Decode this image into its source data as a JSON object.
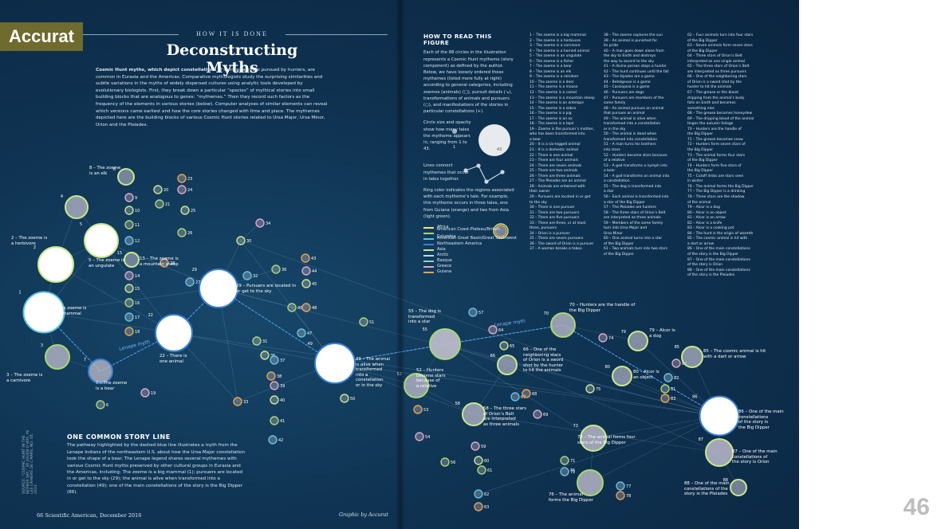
{
  "brand": {
    "label": "Accurat"
  },
  "slide": {
    "page_number": "46"
  },
  "header": {
    "kicker": "HOW IT IS DONE",
    "title": "Deconstructing Myths"
  },
  "intro": {
    "lead": "Cosmic Hunt myths, which depict constellations",
    "body": " of stars as animals pursued by hunters, are common in Eurasia and the Americas. Comparative mythologists study the surprising similarities and subtle variations in the myths of widely dispersed cultures using analytic tools developed by evolutionary biologists. First, they break down a particular “species” of mythical stories into small building blocks that are analogous to genes: “mythemes.” Then they record such factors as the frequency of the elements in various stories (below). Computer analyses of similar elements can reveal which versions came earliest and how the core stories changed with time and place. The mythemes depicted here are the building blocks of various Cosmic Hunt stories related to Ursa Major, Ursa Minor, Orion and the Pleiades."
  },
  "story": {
    "heading": "ONE COMMON STORY LINE",
    "text": "The pathway highlighted by the dashed blue line illustrates a myth from the Lenape Indians of the northeastern U.S. about how the Ursa Major constellation took the shape of a bear. The Lenape legend shares several mythemes with various Cosmic Hunt myths preserved by other cultural groups in Eurasia and the Americas, including: The zoeme is a big mammal (1); pursuers are located in or get to the sky (29); the animal is alive when transformed into a constellation (49); one of the main constellations of the story is the Big Dipper (86)."
  },
  "source_note": "SOURCE: “COSMIC HUNT IN THE BERBER SKY,” BY JULIEN D’HUY, IN LES CAHIERS DE L’AARS, NO. 16; 2013",
  "footer": {
    "left": "66  Scientific American, December 2016",
    "credit": "Graphic by Accurat"
  },
  "how_to_read": {
    "heading": "HOW TO READ THIS FIGURE",
    "p1": "Each of the 88 circles in the illustration represents a Cosmic Hunt mytheme (story component) as defined by the author. Below, we have loosely ordered those mythemes (listed more fully at right) according to general categories, including zoemes (animals) (□), pursuit details (↘), transformations of animals and pursuers (○), and manifestations of the stories in particular constellations (+).",
    "p2": "Circle size and opacity show how many tales the mytheme appears in, ranging from 1 to 43.",
    "p3": "Lines connect mythemes that occur in tales together.",
    "p4": "Ring color indicates the regions associated with each mytheme’s tale. For example, this mytheme occurs in three tales, one from Guiana (orange) and two from Asia (light green).",
    "size_min": "1",
    "size_max": "43",
    "regions": [
      {
        "name": "Africa",
        "color": "#f2e77a"
      },
      {
        "name": "American Coast-Plateau/British Columbia",
        "color": "#a8d86d"
      },
      {
        "name": "American Great Basin/Great Southwest",
        "color": "#5fc3e4"
      },
      {
        "name": "Northeastern America",
        "color": "#3b7fd1"
      },
      {
        "name": "Asia",
        "color": "#c7e88a"
      },
      {
        "name": "Arctic",
        "color": "#b7d9ef"
      },
      {
        "name": "Basque",
        "color": "#9ad0b9"
      },
      {
        "name": "Greece",
        "color": "#e6a3c8"
      },
      {
        "name": "Guiana",
        "color": "#f0a04b"
      }
    ]
  },
  "mytheme_columns": [
    [
      "1 – The zoeme is a big mammal",
      "2 – The zoeme is a herbivore",
      "3 – The zoeme is a carnivore",
      "4 – The zoeme is a horned animal",
      "5 – The zoeme is an ungulate",
      "6 – The zoeme is a fisher",
      "7 – The zoeme is a bear",
      "8 – The zoeme is an elk",
      "9 – The zoeme is a reindeer",
      "10 – The zoeme is a deer",
      "11 – The zoeme is a moose",
      "12 – The zoeme is a camel",
      "13 – The zoeme is a mountain sheep",
      "14 – The zoeme is an antelope",
      "15 – The zoeme is a zebra",
      "16 – The zoeme is a pig",
      "17 – The zoeme is an ox",
      "18 – The zoeme is a tapir",
      "19 – Zoeme is the pursuer’s mother,",
      "who has been transformed into",
      "a bear",
      "20 – It is a six-legged animal",
      "21 – It is a domestic animal",
      "22 – There is one animal",
      "23 – There are four animals",
      "24 – There are seven animals",
      "25 – There are two animals",
      "26 – There are three animals",
      "27 – The Pleiades are an animal",
      "28 – Animals are entwined with",
      "their owner",
      "29 – Pursuers are located in or get",
      "to the sky",
      "30 – There is one pursuer",
      "31 – There are two pursuers",
      "32 – There are five pursuers",
      "33 – There are three, or at least",
      "three, pursuers",
      "34 – Orion is a pursuer",
      "35 – There are seven pursuers",
      "36 – The sword of Orion is a pursuer",
      "37 – A woman breaks a taboo"
    ],
    [
      "38 – The zoeme captures the sun",
      "39 – An animal is punished for",
      "its pride",
      "40 – A man goes down alone from",
      "the sky to Earth and destroys",
      "the way to ascent to the sky",
      "41 – A divine person stops a hunter",
      "42 – The hunt continues until the fall",
      "43 – The Hyades are a game",
      "44 – Betelgeuse is a game",
      "45 – Cassiopeia is a game",
      "46 – Pursuers are dogs",
      "47 – Pursuers are members of the",
      "same family",
      "48 – An animal pursues an animal",
      "that pursues an animal",
      "49 – The animal is alive when",
      "transformed into a constellation",
      "or in the sky",
      "50 – The animal is dead when",
      "transformed into constellation",
      "51 – A man turns his brothers",
      "into stars",
      "52 – Hunters become stars because",
      "of a relative",
      "53 – A god transforms a nymph into",
      "a bear",
      "54 – A god transforms an animal into",
      "a constellation",
      "55 – The dog is transformed into",
      "a star",
      "56 – Each animal is transformed into",
      "a star of the Big Dipper",
      "57 – The Pleiades are hunters",
      "58 – The three stars of Orion’s Belt",
      "are interpreted as three animals",
      "59 – Members of the same family",
      "turn into Ursa Major and",
      "Ursa Minor",
      "60 – One animal turns into a star",
      "of the Big Dipper",
      "61 – Two animals turn into two stars",
      "of the Big Dipper"
    ],
    [
      "62 – Four animals turn into four stars",
      "of the Big Dipper",
      "63 – Seven animals form seven stars",
      "of the Big Dipper",
      "64 – Three stars of Orion’s Belt",
      "interpreted as one single animal",
      "65 – The three stars of Orion’s Belt",
      "are interpreted as three pursuers",
      "66 – One of the neighboring stars",
      "of Orion is a sword shot by the",
      "hunter to hit the animals",
      "67 – The grease or the blood",
      "dripping from the animal’s body",
      "falls on Earth and becomes",
      "something else",
      "68 – The grease becomes honeydew",
      "69 – The dripping blood of the animal",
      "tinges the autumn foliage",
      "70 – Hunters are the handle of",
      "the Big Dipper",
      "71 – The grease becomes snow",
      "72 – Hunters form seven stars of",
      "the Big Dipper",
      "73 – The animal forms four stars",
      "of the Big Dipper",
      "74 – Hunters form five stars of",
      "the Big Dipper",
      "75 – Cutoff limbs are stars seen",
      "in winter",
      "76 – The animal forms the Big Dipper",
      "77 – The Big Dipper is a drinking",
      "78 – Three stars are the shadow",
      "of the animal",
      "79 – Alcor is a dog",
      "80 – Alcor is an object",
      "81 – Alcor is an arrow",
      "82 – Alcor is a knife",
      "83 – Alcor is a cooking pot",
      "84 – The hunt is the origin of warmth",
      "85 – The cosmic animal is hit with",
      "a dart or arrow",
      "86 – One of the main constellations",
      "of the story is the Big Dipper",
      "87 – One of the main constellations",
      "of the story is Orion",
      "88 – One of the main constellations",
      "of the story is the Pleiades"
    ]
  ],
  "diagram": {
    "path_label": "Lenape myth",
    "nodes": [
      {
        "id": "1",
        "size": 43,
        "ring": "#5fc3e4",
        "label": "1 – The zoeme is\na big mammal"
      },
      {
        "id": "2",
        "size": 36,
        "ring": "#c7e88a",
        "label": "2 – The zoeme is\na herbivore"
      },
      {
        "id": "3",
        "size": 22,
        "ring": "#a8d86d",
        "label": "3 – The zoeme is\na carnivore"
      },
      {
        "id": "4",
        "size": 20,
        "ring": "#c7e88a",
        "label": ""
      },
      {
        "id": "5",
        "size": 34,
        "ring": "#c7e88a",
        "label": "5 – The zoeme is\nan ungulate"
      },
      {
        "id": "7",
        "size": 22,
        "ring": "#3b7fd1",
        "label": "7 – The zoeme\nis a bear"
      },
      {
        "id": "8",
        "size": 12,
        "ring": "#c7e88a",
        "label": "8 – The zoeme\nis an elk"
      },
      {
        "id": "13",
        "size": 10,
        "ring": "#c7e88a",
        "label": "13 – The zoeme is\na mountain sheep"
      },
      {
        "id": "22",
        "size": 38,
        "ring": "#3b7fd1",
        "label": "22 – There is\none animal"
      },
      {
        "id": "29",
        "size": 40,
        "ring": "#3b7fd1",
        "label": "29 – Pursuers are located in\nor get to the sky"
      },
      {
        "id": "49",
        "size": 42,
        "ring": "#3b7fd1",
        "label": "49 – The animal\nis alive when\ntransformed\ninto a\nconstellation\nor in the sky"
      },
      {
        "id": "55",
        "size": 30,
        "ring": "#a8d86d",
        "label": "55 – The dog is\ntransformed\ninto a star"
      },
      {
        "id": "52",
        "size": 22,
        "ring": "#a8d86d",
        "label": "52 – Hunters\nbecome stars\nbecause of\na relative"
      },
      {
        "id": "58",
        "size": 20,
        "ring": "#c7e88a",
        "label": "58 – The three stars\nof Orion’s Belt\nare interpreted\nas three animals"
      },
      {
        "id": "66",
        "size": 16,
        "ring": "#c7e88a",
        "label": "66 – One of the\nneighboring stars\nof Orion is a sword\nshot by the hunter\nto hit the animals"
      },
      {
        "id": "70",
        "size": 22,
        "ring": "#a8d86d",
        "label": "70 – Hunters are the handle of\nthe Big Dipper"
      },
      {
        "id": "73",
        "size": 24,
        "ring": "#c7e88a",
        "label": "73 – The animal forms four\nstars of the Big Dipper"
      },
      {
        "id": "76",
        "size": 24,
        "ring": "#a8d86d",
        "label": "76 – The animal\nforms the Big Dipper"
      },
      {
        "id": "79",
        "size": 16,
        "ring": "#c7e88a",
        "label": "79 – Alcor is\na dog"
      },
      {
        "id": "80",
        "size": 16,
        "ring": "#c7e88a",
        "label": "80 – Alcor is\nan object"
      },
      {
        "id": "85",
        "size": 18,
        "ring": "#c7e88a",
        "label": "85 – The cosmic animal is hit\nwith a dart or arrow"
      },
      {
        "id": "86",
        "size": 41,
        "ring": "#3b7fd1",
        "label": "86 – One of the main\nconstellations\nof the story is\nthe Big Dipper"
      },
      {
        "id": "87",
        "size": 26,
        "ring": "#c7e88a",
        "label": "87 – One of the main\nconstellations of\nthe story is Orion"
      },
      {
        "id": "88",
        "size": 12,
        "ring": "#c7e88a",
        "label": "88 – One of the main\nconstellations of the\nstory is the Pleiades"
      }
    ],
    "small_ids": [
      "6",
      "9",
      "10",
      "11",
      "12",
      "14",
      "15",
      "16",
      "17",
      "18",
      "19",
      "20",
      "21",
      "23",
      "24",
      "25",
      "26",
      "27",
      "28",
      "30",
      "31",
      "32",
      "33",
      "34",
      "35",
      "36",
      "37",
      "38",
      "39",
      "40",
      "41",
      "42",
      "43",
      "44",
      "45",
      "46",
      "47",
      "48",
      "50",
      "51",
      "53",
      "54",
      "56",
      "57",
      "59",
      "60",
      "61",
      "62",
      "63",
      "64",
      "65",
      "67",
      "68",
      "69",
      "71",
      "72",
      "74",
      "75",
      "77",
      "78",
      "81",
      "82",
      "83",
      "84"
    ]
  }
}
